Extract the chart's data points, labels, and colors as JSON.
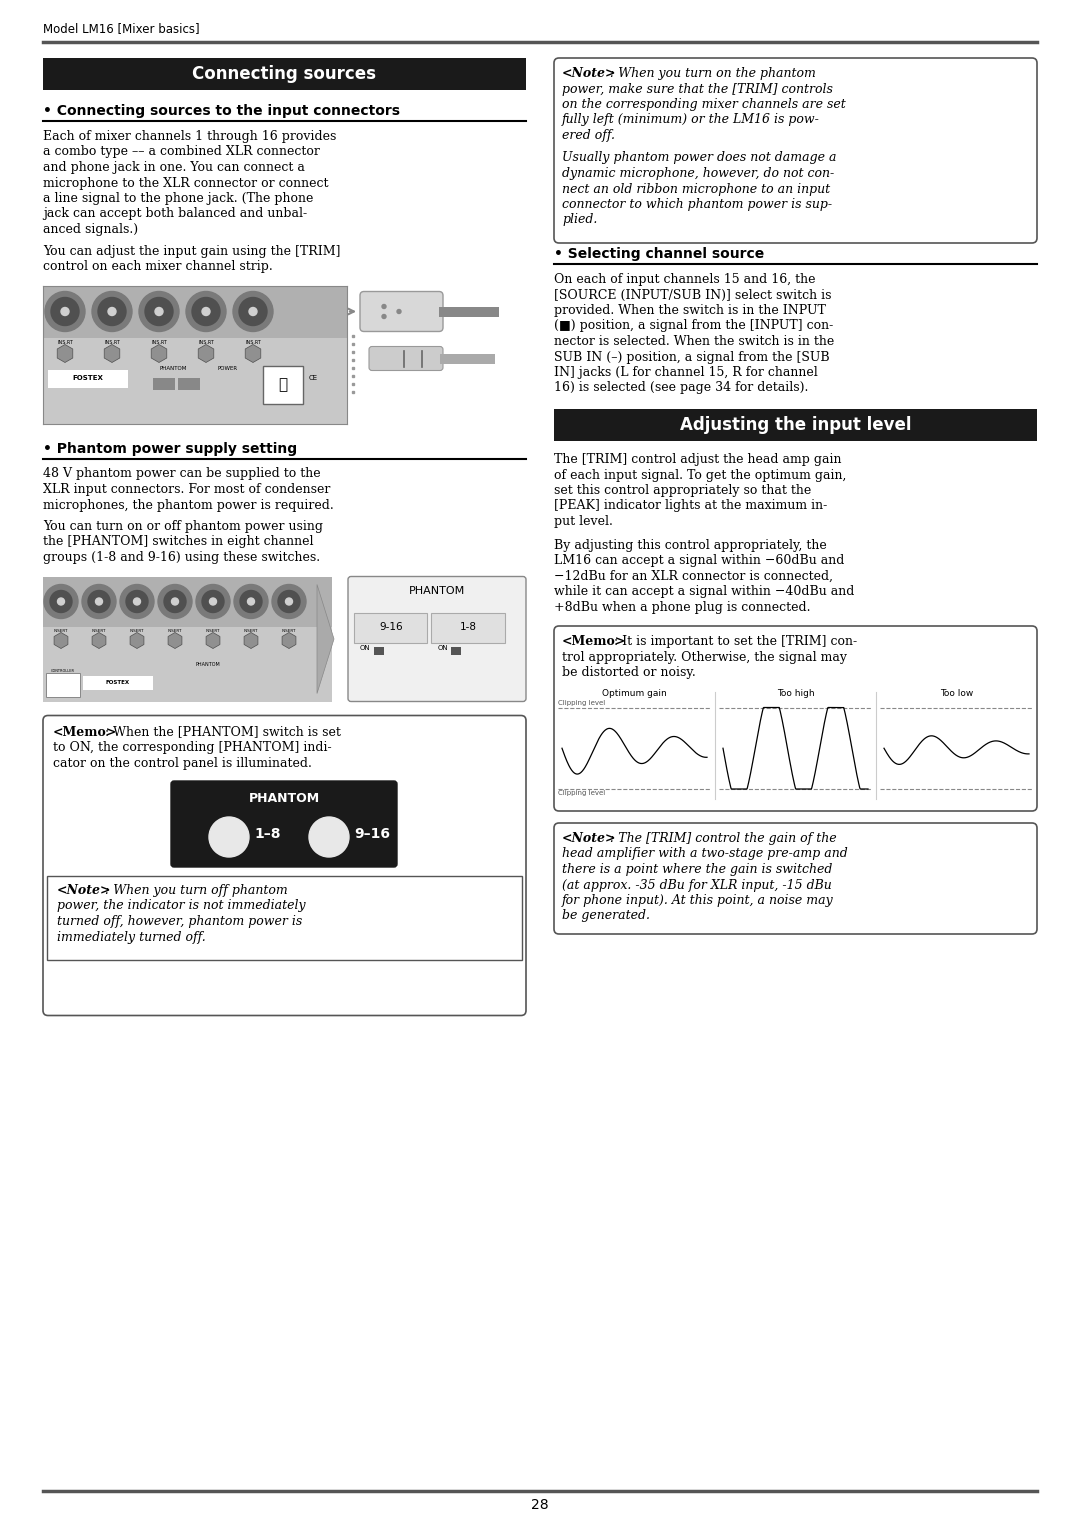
{
  "page_header": "Model LM16 [Mixer basics]",
  "page_number": "28",
  "background_color": "#ffffff",
  "header_line_color": "#555555",
  "footer_line_color": "#555555",
  "left_col": {
    "section1_title": "Connecting sources",
    "section1_title_bg": "#1a1a1a",
    "section1_title_color": "#ffffff",
    "sub1_title": "• Connecting sources to the input connectors",
    "sub2_title": "• Phantom power supply setting",
    "phantom_label": "PHANTOM",
    "phantom_btn1": "1–8",
    "phantom_btn2": "9–16",
    "phantom_btn_bg": "#1a1a1a",
    "phantom_btn_color": "#ffffff"
  },
  "right_col": {
    "sub3_title": "• Selecting channel source",
    "section2_title": "Adjusting the input level",
    "section2_title_bg": "#1a1a1a",
    "section2_title_color": "#ffffff",
    "wave_labels": [
      "Optimum gain",
      "Too high",
      "Too low"
    ]
  }
}
